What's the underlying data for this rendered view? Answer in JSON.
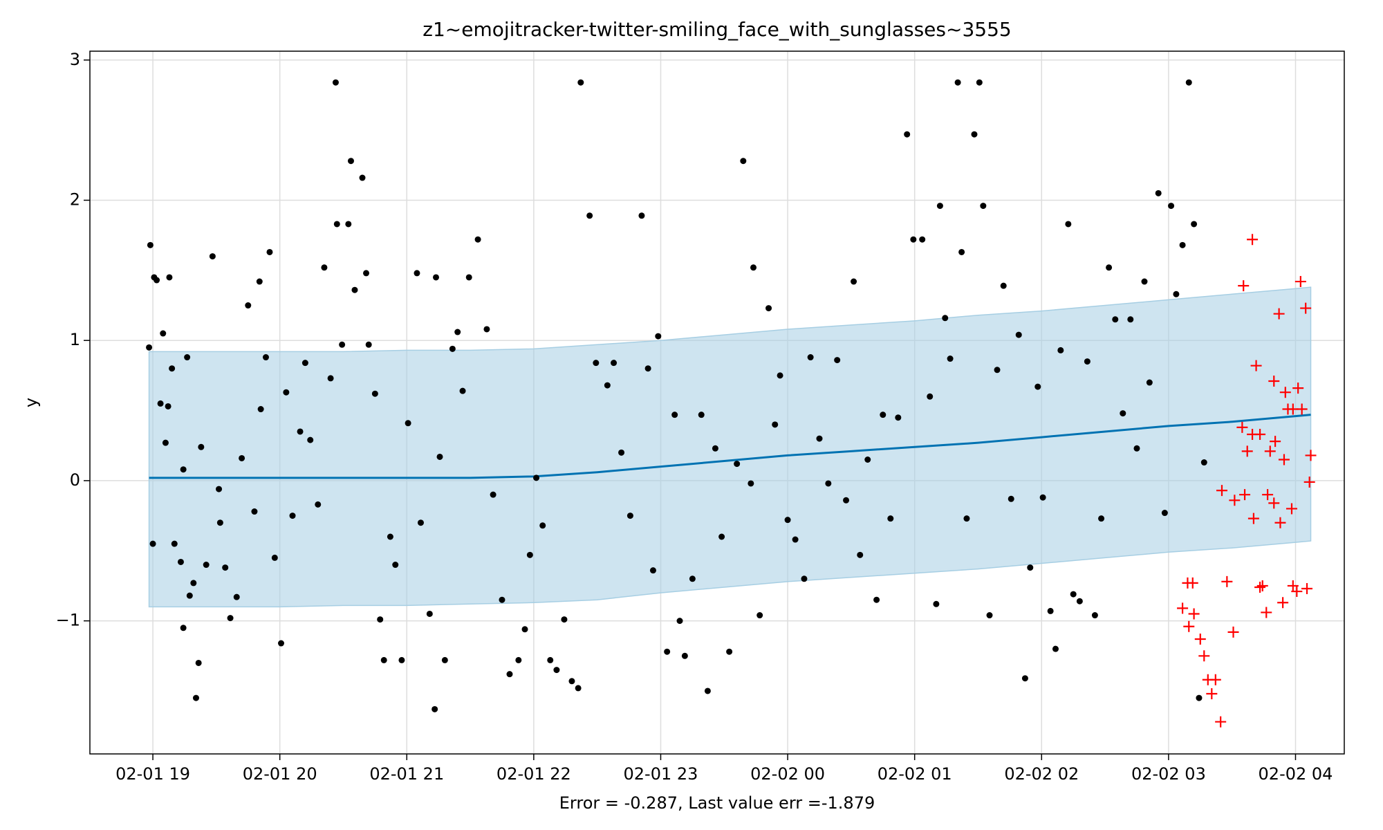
{
  "chart_data": {
    "type": "scatter",
    "title": "z1~emojitracker-twitter-smiling_face_with_sunglasses~3555",
    "xlabel": "Error = -0.287, Last value err =-1.879",
    "ylabel": "y",
    "xlim": [
      18.504,
      28.384
    ],
    "ylim": [
      -1.949,
      3.063
    ],
    "xticks": [
      {
        "value": 19,
        "label": "02-01 19"
      },
      {
        "value": 20,
        "label": "02-01 20"
      },
      {
        "value": 21,
        "label": "02-01 21"
      },
      {
        "value": 22,
        "label": "02-01 22"
      },
      {
        "value": 23,
        "label": "02-01 23"
      },
      {
        "value": 24,
        "label": "02-02 00"
      },
      {
        "value": 25,
        "label": "02-02 01"
      },
      {
        "value": 26,
        "label": "02-02 02"
      },
      {
        "value": 27,
        "label": "02-02 03"
      },
      {
        "value": 28,
        "label": "02-02 04"
      }
    ],
    "yticks": [
      {
        "value": -1,
        "label": "−1"
      },
      0,
      1,
      2,
      3
    ],
    "grid": true,
    "series": [
      {
        "type": "band-line",
        "color": "#0072b2",
        "band_color": "#a6cee3",
        "x": [
          18.97,
          19.5,
          20,
          20.5,
          21,
          21.5,
          22,
          22.5,
          23,
          23.5,
          24,
          24.5,
          25,
          25.5,
          26,
          26.5,
          27,
          27.5,
          28,
          28.12
        ],
        "values": [
          0.02,
          0.02,
          0.02,
          0.02,
          0.02,
          0.02,
          0.03,
          0.06,
          0.1,
          0.14,
          0.18,
          0.21,
          0.24,
          0.27,
          0.31,
          0.35,
          0.39,
          0.42,
          0.46,
          0.47
        ],
        "upper": [
          0.92,
          0.92,
          0.92,
          0.92,
          0.93,
          0.93,
          0.94,
          0.97,
          1.0,
          1.04,
          1.08,
          1.11,
          1.14,
          1.18,
          1.21,
          1.25,
          1.29,
          1.33,
          1.37,
          1.38
        ],
        "lower": [
          -0.9,
          -0.9,
          -0.9,
          -0.89,
          -0.89,
          -0.88,
          -0.87,
          -0.85,
          -0.8,
          -0.76,
          -0.72,
          -0.69,
          -0.66,
          -0.63,
          -0.59,
          -0.55,
          -0.51,
          -0.48,
          -0.44,
          -0.43
        ]
      },
      {
        "type": "dot",
        "color": "#000000",
        "x": [
          18.97,
          18.98,
          19.0,
          19.01,
          19.03,
          19.06,
          19.08,
          19.1,
          19.12,
          19.13,
          19.15,
          19.17,
          19.22,
          19.24,
          19.24,
          19.27,
          19.29,
          19.32,
          19.34,
          19.36,
          19.38,
          19.42,
          19.47,
          19.52,
          19.53,
          19.57,
          19.61,
          19.66,
          19.7,
          19.75,
          19.8,
          19.84,
          19.85,
          19.89,
          19.92,
          19.96,
          20.01,
          20.05,
          20.1,
          20.16,
          20.2,
          20.24,
          20.3,
          20.35,
          20.4,
          20.44,
          20.45,
          20.49,
          20.54,
          20.56,
          20.59,
          20.65,
          20.68,
          20.7,
          20.75,
          20.79,
          20.82,
          20.87,
          20.91,
          20.96,
          21.01,
          21.08,
          21.11,
          21.18,
          21.22,
          21.23,
          21.26,
          21.3,
          21.36,
          21.4,
          21.44,
          21.49,
          21.56,
          21.63,
          21.68,
          21.75,
          21.81,
          21.88,
          21.93,
          21.97,
          22.02,
          22.07,
          22.13,
          22.18,
          22.24,
          22.3,
          22.35,
          22.37,
          22.44,
          22.49,
          22.58,
          22.63,
          22.69,
          22.76,
          22.85,
          22.9,
          22.94,
          22.98,
          23.05,
          23.11,
          23.15,
          23.19,
          23.25,
          23.32,
          23.37,
          23.43,
          23.48,
          23.54,
          23.6,
          23.65,
          23.71,
          23.73,
          23.78,
          23.85,
          23.9,
          23.94,
          24.0,
          24.06,
          24.13,
          24.18,
          24.25,
          24.32,
          24.39,
          24.46,
          24.52,
          24.57,
          24.63,
          24.7,
          24.75,
          24.81,
          24.87,
          24.94,
          24.99,
          25.06,
          25.12,
          25.17,
          25.2,
          25.24,
          25.28,
          25.34,
          25.37,
          25.41,
          25.47,
          25.51,
          25.54,
          25.59,
          25.65,
          25.7,
          25.76,
          25.82,
          25.87,
          25.91,
          25.97,
          26.01,
          26.07,
          26.11,
          26.15,
          26.21,
          26.25,
          26.3,
          26.36,
          26.42,
          26.47,
          26.53,
          26.58,
          26.64,
          26.7,
          26.75,
          26.81,
          26.85,
          26.92,
          26.97,
          27.02,
          27.06,
          27.11,
          27.16,
          27.2,
          27.24,
          27.28
        ],
        "values": [
          0.95,
          1.68,
          -0.45,
          1.45,
          1.43,
          0.55,
          1.05,
          0.27,
          0.53,
          1.45,
          0.8,
          -0.45,
          -0.58,
          0.08,
          -1.05,
          0.88,
          -0.82,
          -0.73,
          -1.55,
          -1.3,
          0.24,
          -0.6,
          1.6,
          -0.06,
          -0.3,
          -0.62,
          -0.98,
          -0.83,
          0.16,
          1.25,
          -0.22,
          1.42,
          0.51,
          0.88,
          1.63,
          -0.55,
          -1.16,
          0.63,
          -0.25,
          0.35,
          0.84,
          0.29,
          -0.17,
          1.52,
          0.73,
          2.84,
          1.83,
          0.97,
          1.83,
          2.28,
          1.36,
          2.16,
          1.48,
          0.97,
          0.62,
          -0.99,
          -1.28,
          -0.4,
          -0.6,
          -1.28,
          0.41,
          1.48,
          -0.3,
          -0.95,
          -1.63,
          1.45,
          0.17,
          -1.28,
          0.94,
          1.06,
          0.64,
          1.45,
          1.72,
          1.08,
          -0.1,
          -0.85,
          -1.38,
          -1.28,
          -1.06,
          -0.53,
          0.02,
          -0.32,
          -1.28,
          -1.35,
          -0.99,
          -1.43,
          -1.48,
          2.84,
          1.89,
          0.84,
          0.68,
          0.84,
          0.2,
          -0.25,
          1.89,
          0.8,
          -0.64,
          1.03,
          -1.22,
          0.47,
          -1.0,
          -1.25,
          -0.7,
          0.47,
          -1.5,
          0.23,
          -0.4,
          -1.22,
          0.12,
          2.28,
          -0.02,
          1.52,
          -0.96,
          1.23,
          0.4,
          0.75,
          -0.28,
          -0.42,
          -0.7,
          0.88,
          0.3,
          -0.02,
          0.86,
          -0.14,
          1.42,
          -0.53,
          0.15,
          -0.85,
          0.47,
          -0.27,
          0.45,
          2.47,
          1.72,
          1.72,
          0.6,
          -0.88,
          1.96,
          1.16,
          0.87,
          2.84,
          1.63,
          -0.27,
          2.47,
          2.84,
          1.96,
          -0.96,
          0.79,
          1.39,
          -0.13,
          1.04,
          -1.41,
          -0.62,
          0.67,
          -0.12,
          -0.93,
          -1.2,
          0.93,
          1.83,
          -0.81,
          -0.86,
          0.85,
          -0.96,
          -0.27,
          1.52,
          1.15,
          0.48,
          1.15,
          0.23,
          1.42,
          0.7,
          2.05,
          -0.23,
          1.96,
          1.33,
          1.68,
          2.84,
          1.83,
          -1.55,
          0.13
        ]
      },
      {
        "type": "plus",
        "color": "#ff0000",
        "x": [
          27.11,
          27.15,
          27.19,
          27.2,
          27.16,
          27.25,
          27.28,
          27.31,
          27.37,
          27.34,
          27.41,
          27.46,
          27.51,
          27.42,
          27.52,
          27.6,
          27.58,
          27.62,
          27.66,
          27.72,
          27.67,
          27.59,
          27.66,
          27.69,
          27.72,
          27.74,
          27.77,
          27.78,
          27.8,
          27.83,
          27.83,
          27.84,
          27.87,
          27.88,
          27.9,
          27.91,
          27.92,
          27.94,
          27.98,
          27.97,
          27.98,
          28.01,
          28.02,
          28.04,
          28.05,
          28.08,
          28.09,
          28.11,
          28.12
        ],
        "values": [
          -0.91,
          -0.73,
          -0.73,
          -0.95,
          -1.04,
          -1.13,
          -1.25,
          -1.42,
          -1.42,
          -1.52,
          -1.72,
          -0.72,
          -1.08,
          -0.07,
          -0.14,
          -0.1,
          0.38,
          0.21,
          0.33,
          0.33,
          -0.27,
          1.39,
          1.72,
          0.82,
          -0.76,
          -0.75,
          -0.94,
          -0.1,
          0.21,
          -0.16,
          0.71,
          0.28,
          1.19,
          -0.3,
          -0.87,
          0.15,
          0.63,
          0.51,
          0.51,
          -0.2,
          -0.75,
          -0.79,
          0.66,
          1.42,
          0.51,
          1.23,
          -0.77,
          -0.01,
          0.18
        ]
      }
    ]
  }
}
